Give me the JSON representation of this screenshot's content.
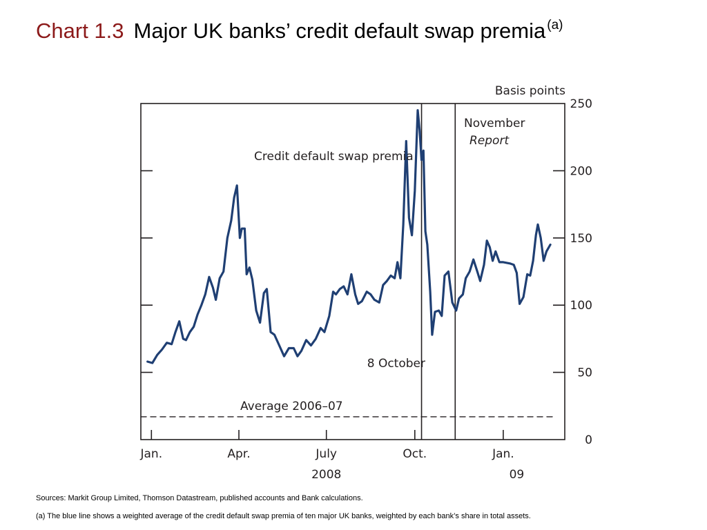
{
  "title": {
    "number": "Chart 1.3",
    "text": "Major UK banks’ credit default swap premia",
    "superscript": "(a)"
  },
  "chart_data": {
    "type": "line",
    "ylabel": "Basis points",
    "ylim": [
      0,
      250
    ],
    "yticks": [
      "0",
      "50",
      "100",
      "150",
      "200",
      "250"
    ],
    "ytick_values": [
      0,
      50,
      100,
      150,
      200,
      250
    ],
    "xlim": [
      "2007-12-21",
      "2009-03-06"
    ],
    "xticks": [
      {
        "label": "Jan.",
        "date": "2008-01-01"
      },
      {
        "label": "Apr.",
        "date": "2008-04-01"
      },
      {
        "label": "July",
        "date": "2008-07-01"
      },
      {
        "label": "Oct.",
        "date": "2008-10-01"
      },
      {
        "label": "Jan.",
        "date": "2009-01-01"
      }
    ],
    "year_labels": [
      {
        "label": "2008",
        "date": "2008-07-01"
      },
      {
        "label": "09",
        "date": "2009-01-15"
      }
    ],
    "grid": false,
    "series": [
      {
        "name": "Credit default swap premia",
        "color": "#1f3f73",
        "points": [
          [
            "2007-12-28",
            58
          ],
          [
            "2008-01-02",
            57
          ],
          [
            "2008-01-07",
            63
          ],
          [
            "2008-01-12",
            67
          ],
          [
            "2008-01-17",
            72
          ],
          [
            "2008-01-22",
            71
          ],
          [
            "2008-01-26",
            80
          ],
          [
            "2008-01-30",
            88
          ],
          [
            "2008-02-03",
            75
          ],
          [
            "2008-02-06",
            74
          ],
          [
            "2008-02-10",
            80
          ],
          [
            "2008-02-14",
            84
          ],
          [
            "2008-02-18",
            93
          ],
          [
            "2008-02-22",
            100
          ],
          [
            "2008-02-26",
            108
          ],
          [
            "2008-03-01",
            121
          ],
          [
            "2008-03-05",
            113
          ],
          [
            "2008-03-08",
            104
          ],
          [
            "2008-03-12",
            120
          ],
          [
            "2008-03-16",
            125
          ],
          [
            "2008-03-20",
            150
          ],
          [
            "2008-03-24",
            163
          ],
          [
            "2008-03-27",
            180
          ],
          [
            "2008-03-30",
            189
          ],
          [
            "2008-04-02",
            150
          ],
          [
            "2008-04-04",
            157
          ],
          [
            "2008-04-07",
            157
          ],
          [
            "2008-04-09",
            123
          ],
          [
            "2008-04-12",
            128
          ],
          [
            "2008-04-15",
            119
          ],
          [
            "2008-04-19",
            96
          ],
          [
            "2008-04-23",
            87
          ],
          [
            "2008-04-27",
            109
          ],
          [
            "2008-04-30",
            112
          ],
          [
            "2008-05-04",
            80
          ],
          [
            "2008-05-08",
            78
          ],
          [
            "2008-05-13",
            70
          ],
          [
            "2008-05-18",
            62
          ],
          [
            "2008-05-23",
            68
          ],
          [
            "2008-05-28",
            68
          ],
          [
            "2008-06-01",
            62
          ],
          [
            "2008-06-05",
            66
          ],
          [
            "2008-06-10",
            74
          ],
          [
            "2008-06-15",
            70
          ],
          [
            "2008-06-20",
            75
          ],
          [
            "2008-06-25",
            83
          ],
          [
            "2008-06-29",
            80
          ],
          [
            "2008-07-04",
            92
          ],
          [
            "2008-07-08",
            110
          ],
          [
            "2008-07-11",
            108
          ],
          [
            "2008-07-15",
            112
          ],
          [
            "2008-07-19",
            114
          ],
          [
            "2008-07-23",
            108
          ],
          [
            "2008-07-27",
            123
          ],
          [
            "2008-07-31",
            108
          ],
          [
            "2008-08-03",
            101
          ],
          [
            "2008-08-07",
            103
          ],
          [
            "2008-08-12",
            110
          ],
          [
            "2008-08-16",
            108
          ],
          [
            "2008-08-20",
            104
          ],
          [
            "2008-08-25",
            102
          ],
          [
            "2008-08-29",
            115
          ],
          [
            "2008-09-02",
            118
          ],
          [
            "2008-09-06",
            122
          ],
          [
            "2008-09-10",
            120
          ],
          [
            "2008-09-13",
            132
          ],
          [
            "2008-09-16",
            120
          ],
          [
            "2008-09-19",
            160
          ],
          [
            "2008-09-22",
            222
          ],
          [
            "2008-09-25",
            165
          ],
          [
            "2008-09-28",
            152
          ],
          [
            "2008-10-01",
            185
          ],
          [
            "2008-10-04",
            245
          ],
          [
            "2008-10-06",
            230
          ],
          [
            "2008-10-08",
            208
          ],
          [
            "2008-10-10",
            215
          ],
          [
            "2008-10-12",
            155
          ],
          [
            "2008-10-14",
            145
          ],
          [
            "2008-10-17",
            110
          ],
          [
            "2008-10-19",
            78
          ],
          [
            "2008-10-22",
            95
          ],
          [
            "2008-10-26",
            96
          ],
          [
            "2008-10-29",
            92
          ],
          [
            "2008-11-01",
            122
          ],
          [
            "2008-11-05",
            125
          ],
          [
            "2008-11-09",
            102
          ],
          [
            "2008-11-13",
            96
          ],
          [
            "2008-11-16",
            105
          ],
          [
            "2008-11-20",
            108
          ],
          [
            "2008-11-23",
            120
          ],
          [
            "2008-11-27",
            125
          ],
          [
            "2008-12-01",
            134
          ],
          [
            "2008-12-05",
            125
          ],
          [
            "2008-12-08",
            118
          ],
          [
            "2008-12-12",
            130
          ],
          [
            "2008-12-15",
            148
          ],
          [
            "2008-12-18",
            143
          ],
          [
            "2008-12-21",
            133
          ],
          [
            "2008-12-24",
            140
          ],
          [
            "2008-12-28",
            132
          ],
          [
            "2009-01-01",
            132
          ],
          [
            "2009-01-08",
            131
          ],
          [
            "2009-01-12",
            130
          ],
          [
            "2009-01-15",
            124
          ],
          [
            "2009-01-18",
            101
          ],
          [
            "2009-01-22",
            106
          ],
          [
            "2009-01-26",
            123
          ],
          [
            "2009-01-29",
            122
          ],
          [
            "2009-02-01",
            133
          ],
          [
            "2009-02-04",
            152
          ],
          [
            "2009-02-06",
            160
          ],
          [
            "2009-02-09",
            150
          ],
          [
            "2009-02-12",
            133
          ],
          [
            "2009-02-15",
            140
          ],
          [
            "2009-02-19",
            145
          ]
        ]
      },
      {
        "name": "Average 2006–07",
        "style": "dashed",
        "color": "#231f20",
        "points": [
          [
            "2007-12-21",
            17
          ],
          [
            "2009-02-22",
            17
          ]
        ]
      }
    ],
    "annotations": [
      {
        "kind": "vline",
        "date": "2008-10-08",
        "label": "8 October"
      },
      {
        "kind": "vline",
        "date": "2008-11-12",
        "label_lines": [
          "November",
          "Report"
        ]
      },
      {
        "kind": "label",
        "text": "Credit default swap premia"
      },
      {
        "kind": "label",
        "text": "Average 2006–07"
      }
    ]
  },
  "footnotes": {
    "sources": "Sources:  Markit Group Limited, Thomson Datastream, published accounts and Bank calculations.",
    "note": "(a)  The blue line shows a weighted average of the credit default swap premia of ten major UK banks, weighted by each bank’s share in total assets."
  }
}
